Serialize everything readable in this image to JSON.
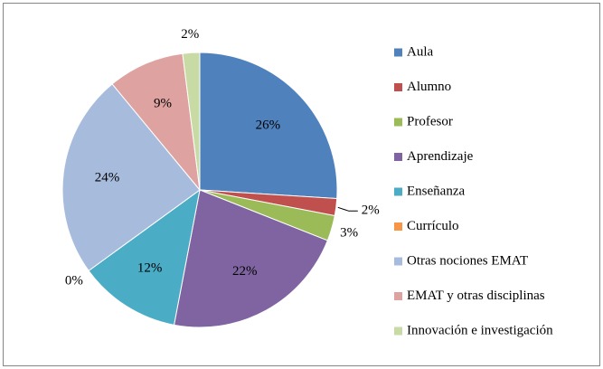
{
  "chart_data": {
    "type": "pie",
    "categories": [
      "Aula",
      "Alumno",
      "Profesor",
      "Aprendizaje",
      "Enseñanza",
      "Currículo",
      "Otras nociones EMAT",
      "EMAT y otras disciplinas",
      "Innovación e investigación"
    ],
    "values": [
      26,
      2,
      3,
      22,
      12,
      0,
      24,
      9,
      2
    ],
    "value_labels": [
      "26%",
      "2%",
      "3%",
      "22%",
      "12%",
      "0%",
      "24%",
      "9%",
      "2%"
    ],
    "colors": [
      "#4f81bd",
      "#c0504d",
      "#9bbb59",
      "#8064a2",
      "#4bacc6",
      "#f79646",
      "#a7bcdd",
      "#dea3a1",
      "#c9dba5"
    ],
    "legend": "right"
  }
}
